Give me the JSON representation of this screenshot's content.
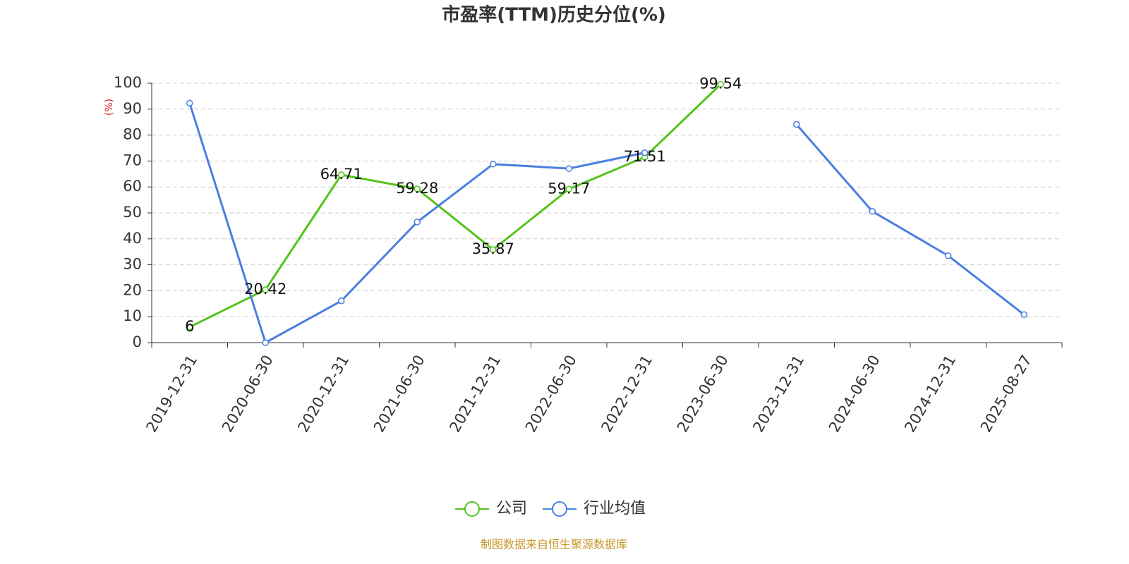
{
  "chart_data": {
    "type": "line",
    "title": "市盈率(TTM)历史分位(%)",
    "y_label": "(%)",
    "source": "制图数据来自恒生聚源数据库",
    "categories": [
      "2019-12-31",
      "2020-06-30",
      "2020-12-31",
      "2021-06-30",
      "2021-12-31",
      "2022-06-30",
      "2022-12-31",
      "2023-06-30",
      "2023-12-31",
      "2024-06-30",
      "2024-12-31",
      "2025-08-27"
    ],
    "series": [
      {
        "name": "公司",
        "color": "#52c41a",
        "data_labels": true,
        "values": [
          6,
          20.42,
          64.71,
          59.28,
          35.87,
          59.17,
          71.51,
          99.54,
          null,
          null,
          null,
          null
        ]
      },
      {
        "name": "行业均值",
        "color": "#4a7fe0",
        "data_labels": false,
        "values": [
          92.3,
          0,
          16.1,
          46.5,
          68.8,
          67.1,
          73.2,
          null,
          84.1,
          50.6,
          33.5,
          10.8
        ]
      }
    ],
    "ylim": [
      0,
      100
    ],
    "yticks": [
      0,
      10,
      20,
      30,
      40,
      50,
      60,
      70,
      80,
      90,
      100
    ],
    "grid": true,
    "legend": "bottom"
  }
}
